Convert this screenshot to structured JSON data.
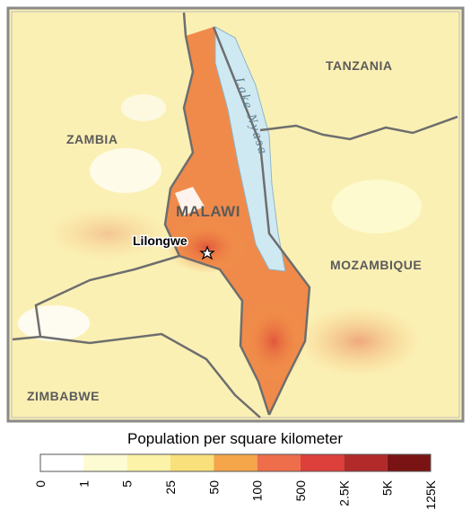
{
  "map": {
    "labels": {
      "tanzania": "TANZANIA",
      "zambia": "ZAMBIA",
      "malawi": "MALAWI",
      "mozambique": "MOZAMBIQUE",
      "zimbabwe": "ZIMBABWE",
      "lake": "Lake Nyasa",
      "capital": "Lilongwe"
    }
  },
  "legend": {
    "title": "Population per square kilometer",
    "colors": [
      "#ffffff",
      "#fdfbd2",
      "#fcf3a8",
      "#f9e07a",
      "#f5a64a",
      "#ee6e4c",
      "#dd3f3a",
      "#b22a2a",
      "#7a1414"
    ],
    "ticks": [
      "0",
      "1",
      "5",
      "25",
      "50",
      "100",
      "500",
      "2.5K",
      "5K",
      "125K"
    ]
  }
}
